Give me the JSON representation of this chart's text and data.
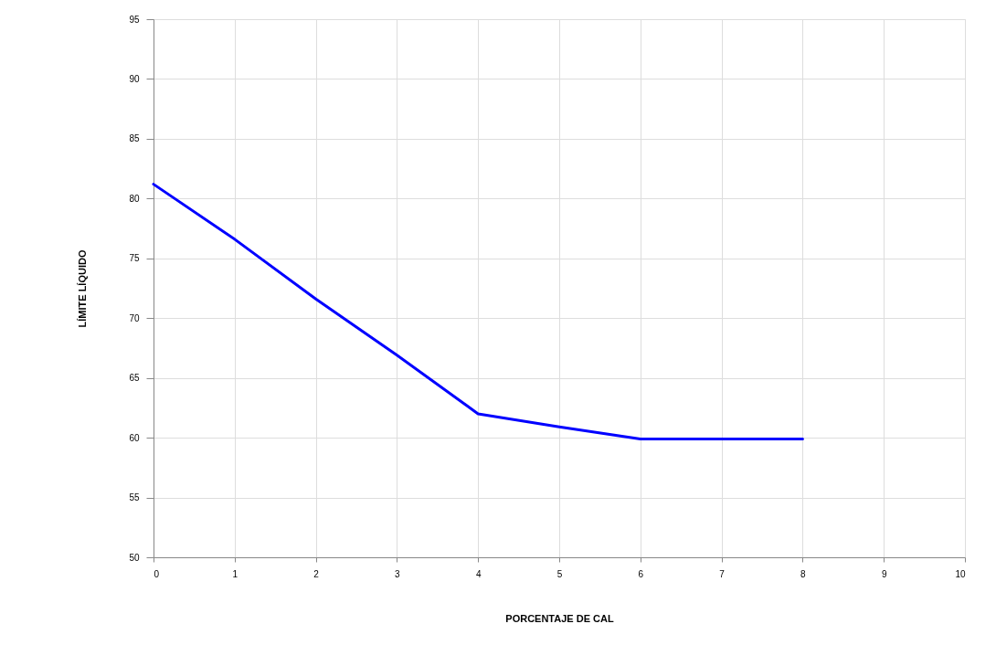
{
  "chart_data": {
    "type": "line",
    "xlabel": "PORCENTAJE DE CAL",
    "ylabel": "LÍMITE LÍQUIDO",
    "x": [
      0,
      1,
      2,
      3,
      4,
      5,
      6,
      7,
      8
    ],
    "series": [
      {
        "color": "#0000ff",
        "values": [
          81.2,
          76.6,
          71.6,
          66.9,
          62.0,
          60.9,
          59.9,
          59.9,
          59.9
        ]
      }
    ],
    "xlim": [
      0,
      10
    ],
    "xticks": [
      0,
      1,
      2,
      3,
      4,
      5,
      6,
      7,
      8,
      9,
      10
    ],
    "ylim": [
      50,
      95
    ],
    "yticks": [
      50,
      55,
      60,
      65,
      70,
      75,
      80,
      85,
      90,
      95
    ],
    "grid": true,
    "marker": "none",
    "line_style": "solid"
  }
}
